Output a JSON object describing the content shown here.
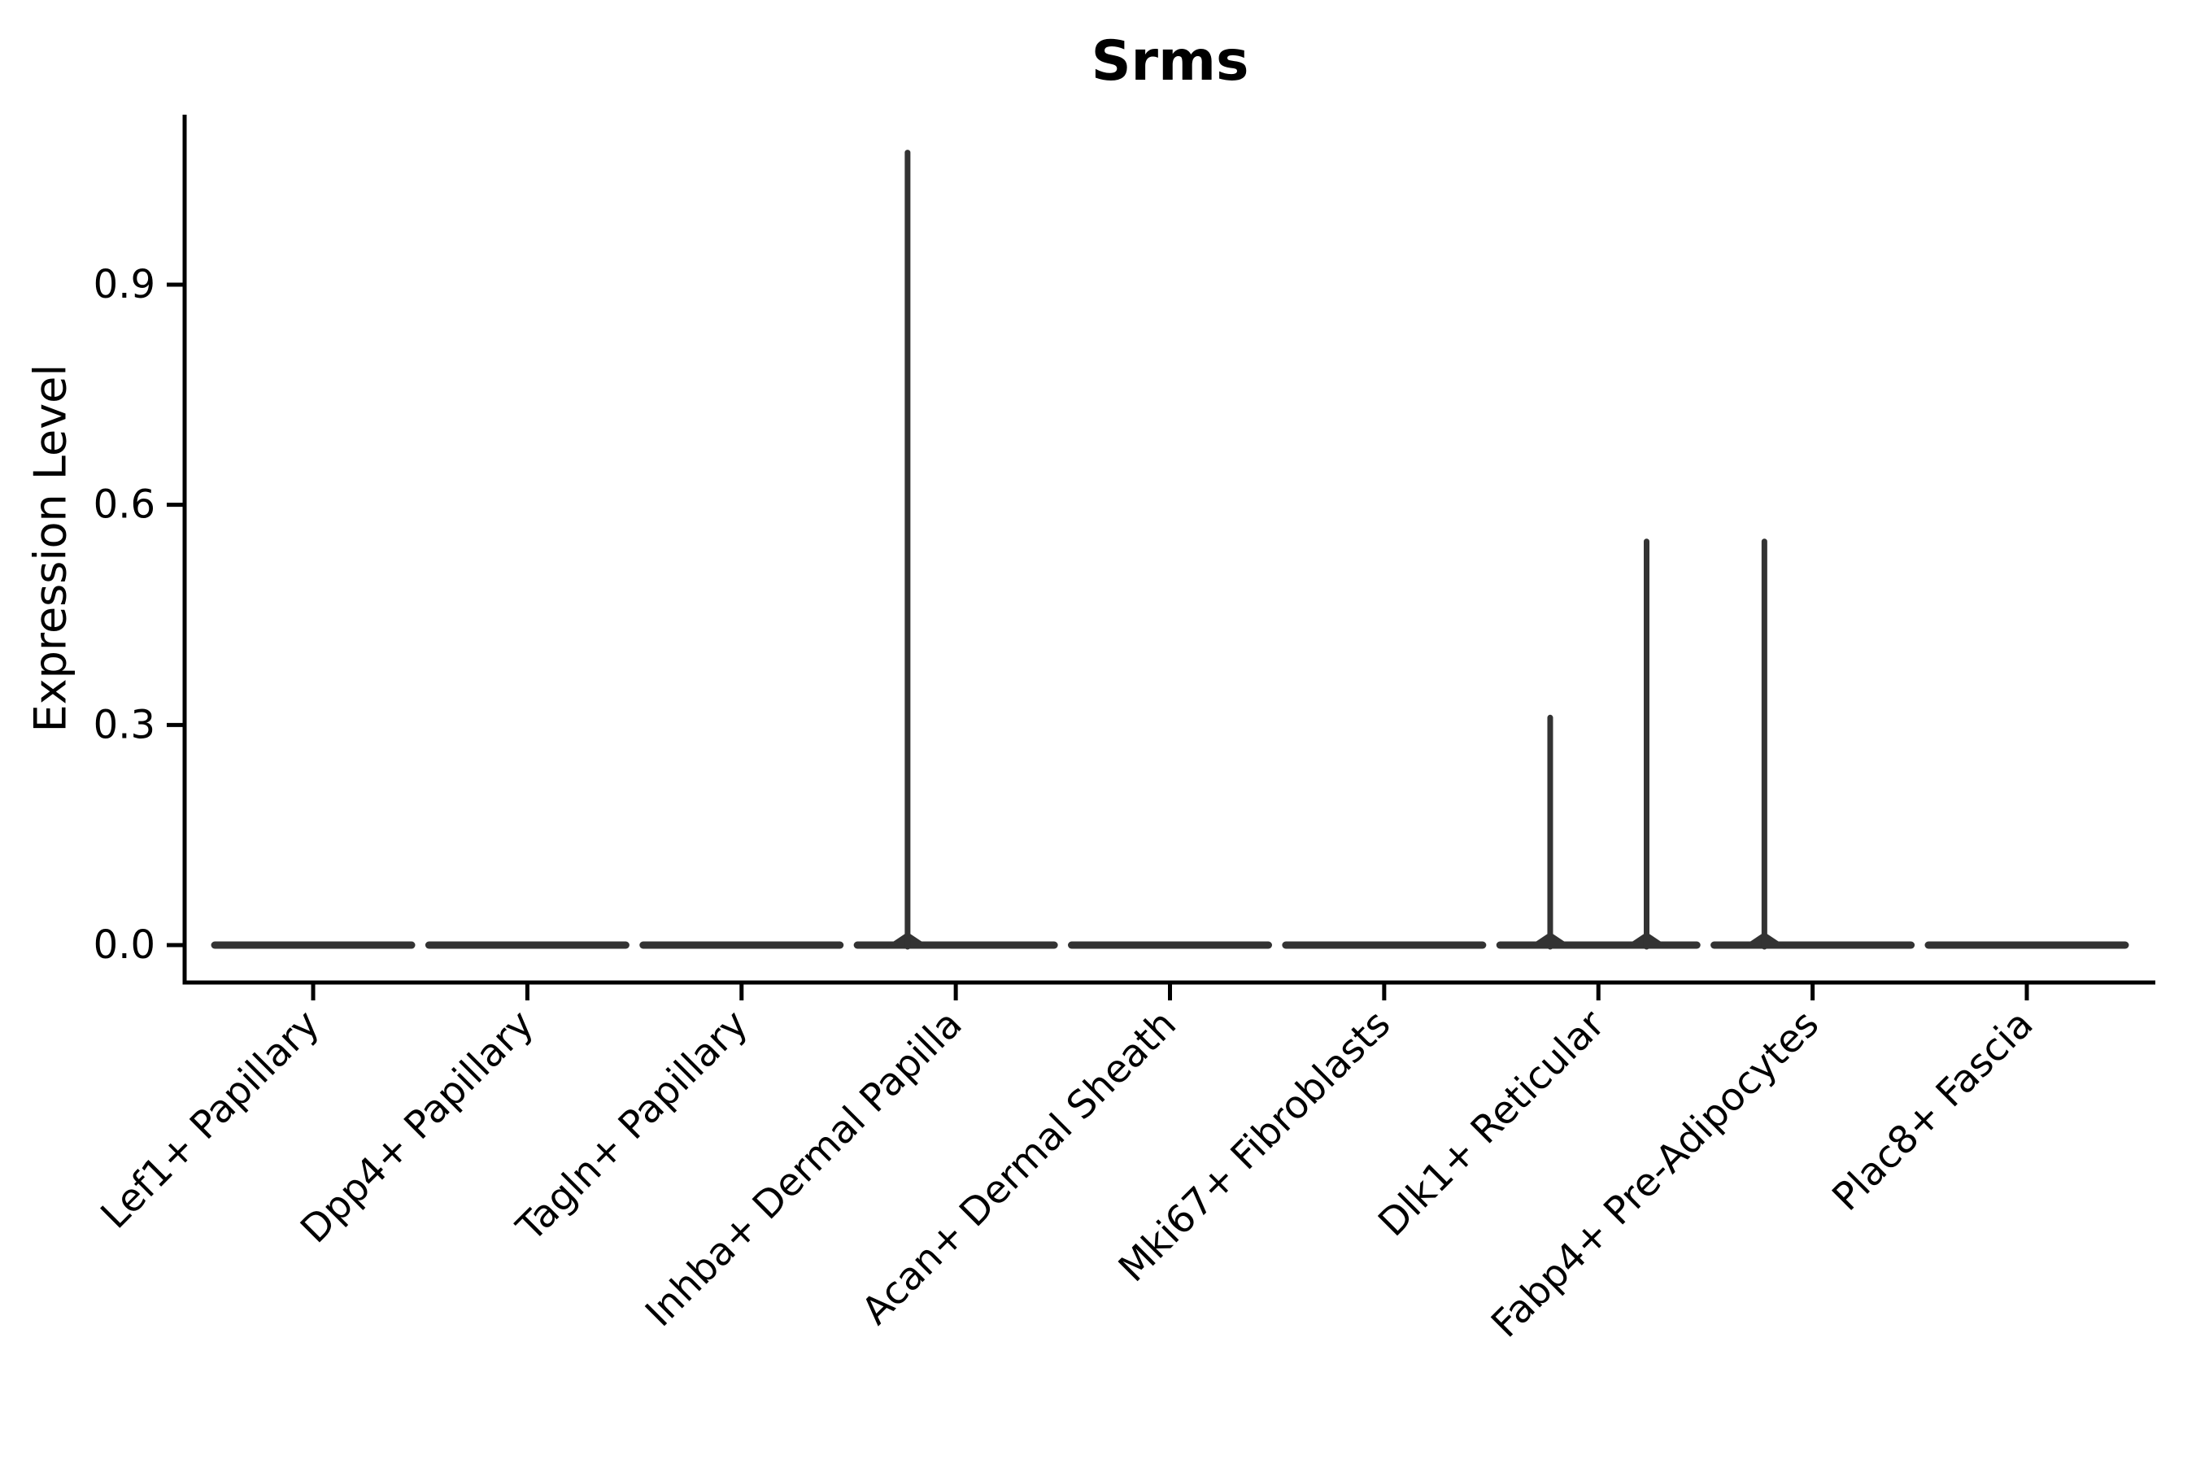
{
  "chart_data": {
    "type": "violin",
    "title": "Srms",
    "ylabel": "Expression Level",
    "xlabel": "",
    "categories": [
      "Lef1+ Papillary",
      "Dpp4+ Papillary",
      "Tagln+ Papillary",
      "Inhba+ Dermal Papilla",
      "Acan+ Dermal Sheath",
      "Mki67+ Fibroblasts",
      "Dlk1+ Reticular",
      "Fabp4+ Pre-Adipocytes",
      "Plac8+ Fascia"
    ],
    "y_ticks": [
      0.0,
      0.3,
      0.6,
      0.9
    ],
    "y_tick_labels": [
      "0.0",
      "0.3",
      "0.6",
      "0.9"
    ],
    "ylim": [
      -0.05,
      1.13
    ],
    "grid": false,
    "legend": "none",
    "baseline_value": 0.0,
    "violins": [
      {
        "category": "Lef1+ Papillary",
        "baseline": 0.0,
        "max": 0.0,
        "spikes": []
      },
      {
        "category": "Dpp4+ Papillary",
        "baseline": 0.0,
        "max": 0.0,
        "spikes": []
      },
      {
        "category": "Tagln+ Papillary",
        "baseline": 0.0,
        "max": 0.0,
        "spikes": []
      },
      {
        "category": "Inhba+ Dermal Papilla",
        "baseline": 0.0,
        "max": 1.08,
        "spikes": [
          {
            "offset_frac": -0.225,
            "value": 1.08
          }
        ]
      },
      {
        "category": "Acan+ Dermal Sheath",
        "baseline": 0.0,
        "max": 0.0,
        "spikes": []
      },
      {
        "category": "Mki67+ Fibroblasts",
        "baseline": 0.0,
        "max": 0.0,
        "spikes": []
      },
      {
        "category": "Dlk1+ Reticular",
        "baseline": 0.0,
        "max": 0.55,
        "spikes": [
          {
            "offset_frac": -0.225,
            "value": 0.31
          },
          {
            "offset_frac": 0.225,
            "value": 0.55
          }
        ]
      },
      {
        "category": "Fabp4+ Pre-Adipocytes",
        "baseline": 0.0,
        "max": 0.55,
        "spikes": [
          {
            "offset_frac": -0.225,
            "value": 0.55
          }
        ]
      },
      {
        "category": "Plac8+ Fascia",
        "baseline": 0.0,
        "max": 0.0,
        "spikes": []
      }
    ],
    "colors": {
      "axis": "#000000",
      "text": "#000000",
      "violin_stroke": "#333333",
      "background": "#ffffff"
    }
  }
}
